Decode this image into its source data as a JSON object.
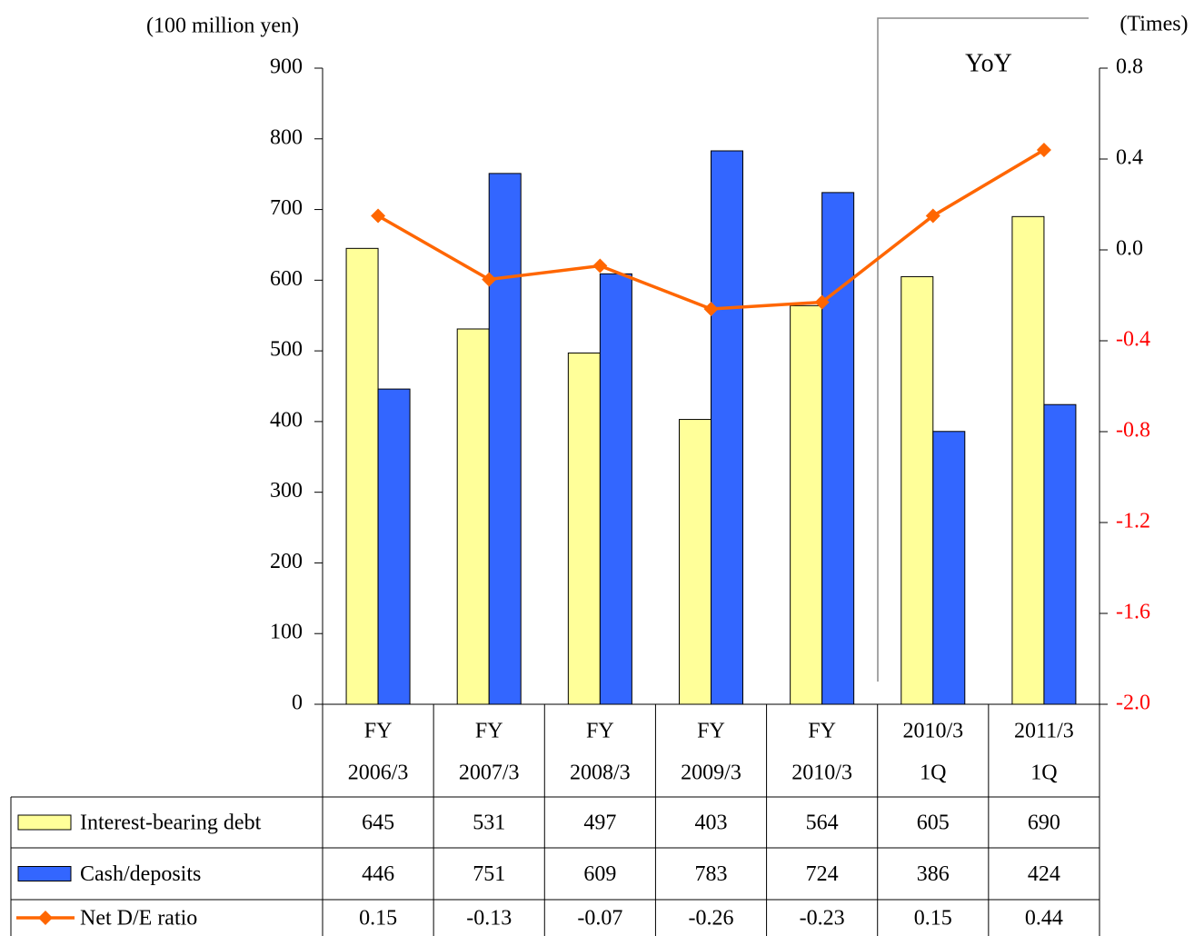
{
  "chart_data": {
    "type": "bar",
    "y_axis_label": "(100 million yen)",
    "y2_axis_label": "(Times)",
    "annotation": "YoY",
    "categories": [
      [
        "FY",
        "2006/3"
      ],
      [
        "FY",
        "2007/3"
      ],
      [
        "FY",
        "2008/3"
      ],
      [
        "FY",
        "2009/3"
      ],
      [
        "FY",
        "2010/3"
      ],
      [
        "2010/3",
        "1Q"
      ],
      [
        "2011/3",
        "1Q"
      ]
    ],
    "series": [
      {
        "name": "Interest-bearing debt",
        "type": "bar",
        "color": "#ffff99",
        "values": [
          645,
          531,
          497,
          403,
          564,
          605,
          690
        ]
      },
      {
        "name": "Cash/deposits",
        "type": "bar",
        "color": "#3366ff",
        "values": [
          446,
          751,
          609,
          783,
          724,
          386,
          424
        ]
      },
      {
        "name": "Net D/E ratio",
        "type": "line",
        "axis": "y2",
        "color": "#ff6600",
        "values": [
          0.15,
          -0.13,
          -0.07,
          -0.26,
          -0.23,
          0.15,
          0.44
        ]
      }
    ],
    "ylim": [
      0,
      900
    ],
    "yticks": [
      0,
      100,
      200,
      300,
      400,
      500,
      600,
      700,
      800,
      900
    ],
    "y2lim": [
      -2,
      0.8
    ],
    "y2ticks": [
      {
        "value": -2,
        "label": "-2.0"
      },
      -1.6,
      -1.2,
      -0.8,
      -0.4,
      {
        "value": 0,
        "label": "0.0"
      },
      0.4,
      0.8
    ],
    "y2_negative_tick_color": "#ff0000",
    "grid": false
  }
}
